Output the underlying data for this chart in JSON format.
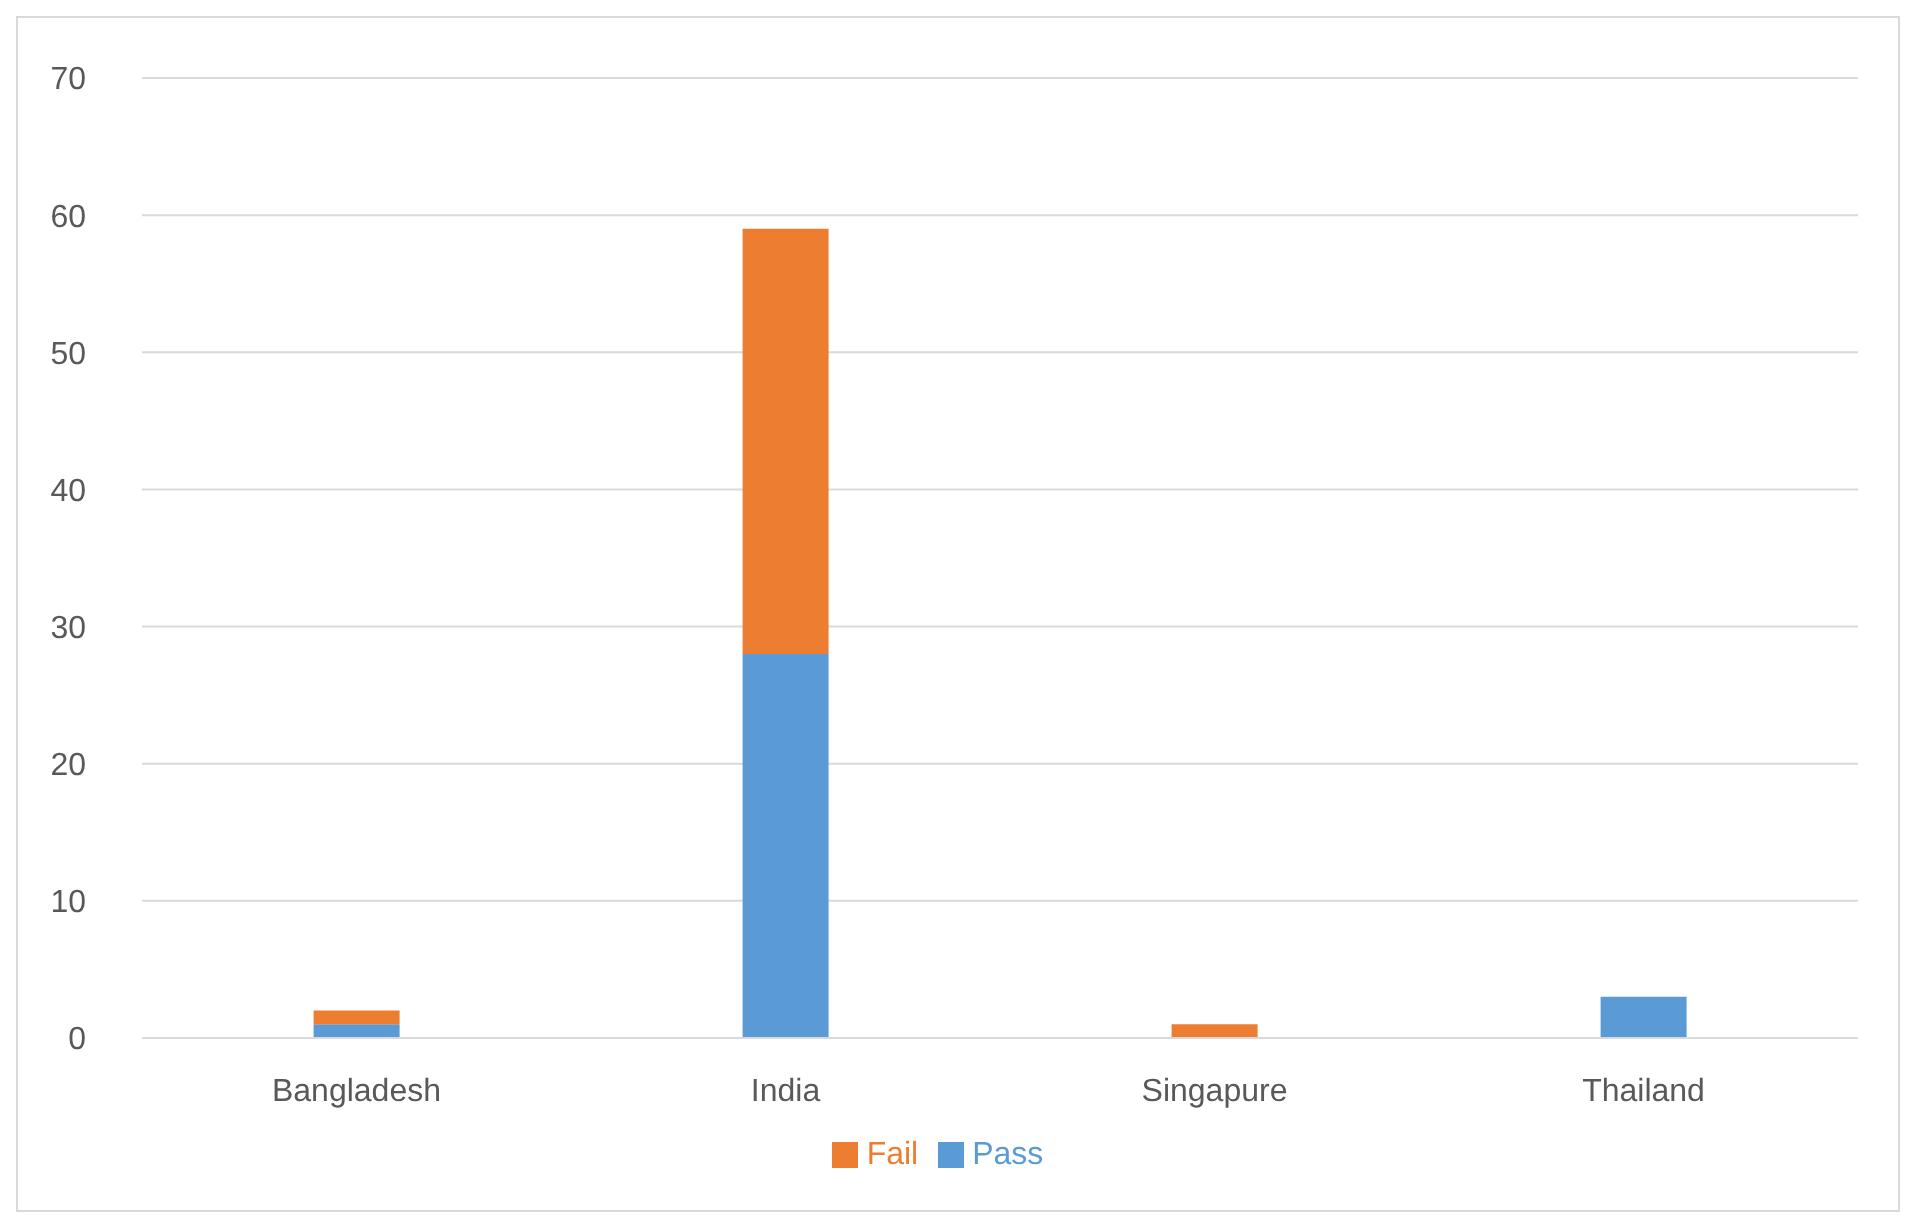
{
  "chart_data": {
    "type": "bar",
    "stacked": true,
    "categories": [
      "Bangladesh",
      "India",
      "Singapure",
      "Thailand"
    ],
    "series": [
      {
        "name": "Pass",
        "color": "#5b9bd5",
        "values": [
          1,
          28,
          0,
          3
        ]
      },
      {
        "name": "Fail",
        "color": "#ed7d31",
        "values": [
          1,
          31,
          1,
          0
        ]
      }
    ],
    "ylim": [
      0,
      70
    ],
    "yticks": [
      0,
      10,
      20,
      30,
      40,
      50,
      60,
      70
    ],
    "grid": "y",
    "legend": "bottom"
  }
}
